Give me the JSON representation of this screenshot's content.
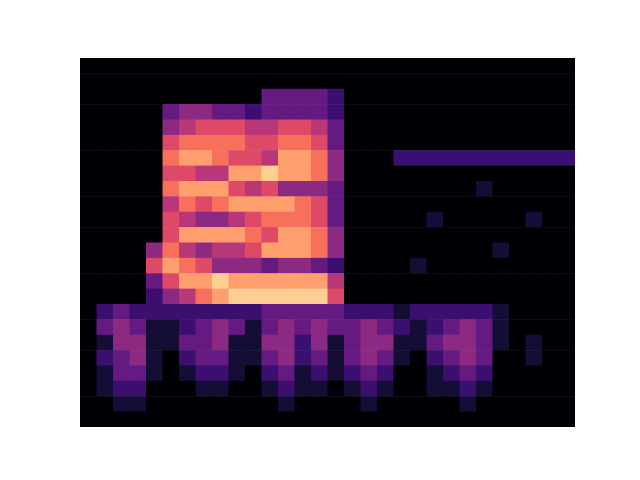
{
  "chart_data": {
    "type": "heatmap",
    "color": "magma",
    "tick_labels": false,
    "zlim": [
      0,
      10
    ],
    "cells": [
      [
        0,
        0,
        0,
        0,
        0,
        0,
        0,
        0,
        0,
        0,
        0,
        0,
        0,
        0,
        0,
        0,
        0,
        0,
        0,
        0,
        0,
        0,
        0,
        0,
        0,
        0,
        0,
        0,
        0,
        0
      ],
      [
        0,
        0,
        0,
        0,
        0,
        0,
        0,
        0,
        0,
        0,
        0,
        0,
        0,
        0,
        0,
        0,
        0,
        0,
        0,
        0,
        0,
        0,
        0,
        0,
        0,
        0,
        0,
        0,
        0,
        0
      ],
      [
        0,
        0,
        0,
        0,
        0,
        0,
        0,
        0,
        0,
        0,
        0,
        3,
        3,
        3,
        3,
        2,
        0,
        0,
        0,
        0,
        0,
        0,
        0,
        0,
        0,
        0,
        0,
        0,
        0,
        0
      ],
      [
        0,
        0,
        0,
        0,
        0,
        3,
        4,
        4,
        3,
        3,
        2,
        3,
        3,
        3,
        3,
        2,
        0,
        0,
        0,
        0,
        0,
        0,
        0,
        0,
        0,
        0,
        0,
        0,
        0,
        0
      ],
      [
        0,
        0,
        0,
        0,
        0,
        4,
        5,
        6,
        6,
        6,
        5,
        5,
        6,
        6,
        5,
        3,
        0,
        0,
        0,
        0,
        0,
        0,
        0,
        0,
        0,
        0,
        0,
        0,
        0,
        0
      ],
      [
        0,
        0,
        0,
        0,
        0,
        6,
        7,
        7,
        7,
        7,
        6,
        6,
        7,
        7,
        6,
        3,
        0,
        0,
        0,
        0,
        0,
        0,
        0,
        0,
        0,
        0,
        0,
        0,
        0,
        0
      ],
      [
        0,
        0,
        0,
        0,
        0,
        7,
        8,
        8,
        7,
        6,
        6,
        5,
        8,
        8,
        7,
        4,
        0,
        0,
        0,
        2,
        2,
        2,
        2,
        2,
        2,
        2,
        2,
        2,
        2,
        2
      ],
      [
        0,
        0,
        0,
        0,
        0,
        6,
        6,
        5,
        5,
        8,
        8,
        9,
        8,
        8,
        7,
        4,
        0,
        0,
        0,
        0,
        0,
        0,
        0,
        0,
        0,
        0,
        0,
        0,
        0,
        0
      ],
      [
        0,
        0,
        0,
        0,
        0,
        7,
        8,
        8,
        8,
        6,
        5,
        6,
        4,
        4,
        4,
        3,
        0,
        0,
        0,
        0,
        0,
        0,
        0,
        0,
        1,
        0,
        0,
        0,
        0,
        0
      ],
      [
        0,
        0,
        0,
        0,
        0,
        5,
        7,
        6,
        7,
        8,
        8,
        8,
        8,
        7,
        6,
        3,
        0,
        0,
        0,
        0,
        0,
        0,
        0,
        0,
        0,
        0,
        0,
        0,
        0,
        0
      ],
      [
        0,
        0,
        0,
        0,
        0,
        6,
        5,
        4,
        4,
        5,
        6,
        7,
        7,
        7,
        6,
        3,
        0,
        0,
        0,
        0,
        0,
        1,
        0,
        0,
        0,
        0,
        0,
        1,
        0,
        0
      ],
      [
        0,
        0,
        0,
        0,
        0,
        6,
        8,
        8,
        8,
        8,
        7,
        6,
        8,
        8,
        7,
        4,
        0,
        0,
        0,
        0,
        0,
        0,
        0,
        0,
        0,
        0,
        0,
        0,
        0,
        0
      ],
      [
        0,
        0,
        0,
        0,
        4,
        7,
        5,
        4,
        5,
        5,
        6,
        8,
        8,
        8,
        7,
        4,
        0,
        0,
        0,
        0,
        0,
        0,
        0,
        0,
        0,
        1,
        0,
        0,
        0,
        0
      ],
      [
        0,
        0,
        0,
        0,
        6,
        8,
        7,
        6,
        4,
        4,
        4,
        3,
        4,
        4,
        3,
        2,
        0,
        0,
        0,
        0,
        1,
        0,
        0,
        0,
        0,
        0,
        0,
        0,
        0,
        0
      ],
      [
        0,
        0,
        0,
        0,
        3,
        6,
        8,
        8,
        9,
        8,
        8,
        8,
        8,
        8,
        8,
        5,
        0,
        0,
        0,
        0,
        0,
        0,
        0,
        0,
        0,
        0,
        0,
        0,
        0,
        0
      ],
      [
        0,
        0,
        0,
        0,
        2,
        4,
        5,
        7,
        8,
        9,
        9,
        9,
        9,
        9,
        9,
        6,
        0,
        0,
        0,
        0,
        0,
        0,
        0,
        0,
        0,
        0,
        0,
        0,
        0,
        0
      ],
      [
        0,
        2,
        3,
        2,
        2,
        2,
        2,
        2,
        2,
        2,
        2,
        3,
        3,
        3,
        3,
        3,
        2,
        2,
        2,
        1,
        2,
        2,
        2,
        2,
        2,
        1,
        0,
        0,
        0,
        0
      ],
      [
        0,
        3,
        4,
        3,
        1,
        1,
        2,
        3,
        4,
        3,
        1,
        3,
        4,
        3,
        4,
        3,
        3,
        4,
        3,
        2,
        1,
        2,
        3,
        4,
        3,
        1,
        0,
        0,
        0,
        0
      ],
      [
        0,
        1,
        4,
        4,
        1,
        1,
        3,
        3,
        4,
        1,
        1,
        4,
        4,
        2,
        4,
        1,
        3,
        4,
        4,
        1,
        1,
        3,
        4,
        4,
        3,
        1,
        0,
        1,
        0,
        0
      ],
      [
        0,
        2,
        3,
        4,
        1,
        0,
        2,
        3,
        3,
        1,
        1,
        3,
        4,
        2,
        3,
        1,
        3,
        4,
        3,
        1,
        0,
        2,
        3,
        4,
        3,
        0,
        0,
        1,
        0,
        0
      ],
      [
        0,
        1,
        3,
        3,
        1,
        0,
        1,
        2,
        2,
        1,
        0,
        2,
        3,
        1,
        2,
        1,
        2,
        3,
        2,
        0,
        0,
        1,
        2,
        3,
        2,
        0,
        0,
        0,
        0,
        0
      ],
      [
        0,
        1,
        2,
        2,
        0,
        0,
        0,
        1,
        1,
        0,
        0,
        1,
        2,
        1,
        1,
        0,
        1,
        2,
        1,
        0,
        0,
        1,
        1,
        2,
        1,
        0,
        0,
        0,
        0,
        0
      ],
      [
        0,
        0,
        1,
        1,
        0,
        0,
        0,
        0,
        0,
        0,
        0,
        0,
        1,
        0,
        0,
        0,
        0,
        1,
        0,
        0,
        0,
        0,
        0,
        1,
        0,
        0,
        0,
        0,
        0,
        0
      ],
      [
        0,
        0,
        0,
        0,
        0,
        0,
        0,
        0,
        0,
        0,
        0,
        0,
        0,
        0,
        0,
        0,
        0,
        0,
        0,
        0,
        0,
        0,
        0,
        0,
        0,
        0,
        0,
        0,
        0,
        0
      ]
    ]
  }
}
